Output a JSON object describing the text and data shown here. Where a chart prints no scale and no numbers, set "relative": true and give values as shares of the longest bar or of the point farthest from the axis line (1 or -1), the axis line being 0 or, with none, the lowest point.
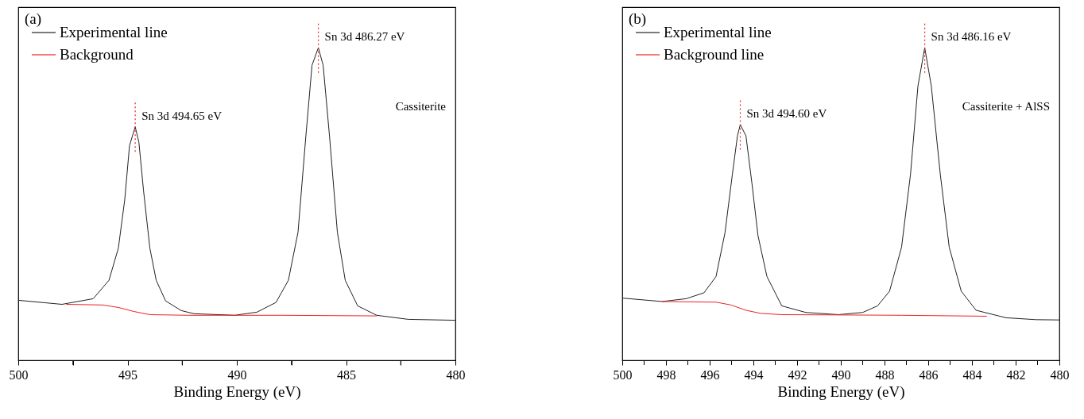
{
  "chart_data": [
    {
      "type": "line",
      "title": "(a)",
      "xlabel": "Binding Energy (eV)",
      "relative": true,
      "legend": "top left",
      "xlim": [
        500,
        480
      ],
      "xticks": [
        500,
        {
          "value": 497.5,
          "label": null
        },
        495,
        {
          "value": 492.5,
          "label": null
        },
        490,
        {
          "value": 487.5,
          "label": null
        },
        485,
        {
          "value": 482.5,
          "label": null
        },
        480
      ],
      "series": [
        {
          "name": "Experimental line",
          "color": "#222222",
          "x": [
            500,
            498.0,
            496.57,
            495.85,
            495.42,
            495.13,
            494.91,
            494.65,
            494.48,
            494.27,
            493.98,
            493.69,
            493.26,
            492.54,
            491.96,
            490.09,
            489.08,
            488.21,
            487.64,
            487.2,
            486.84,
            486.56,
            486.27,
            486.05,
            485.76,
            485.4,
            485.04,
            484.47,
            483.6,
            482.16,
            480
          ],
          "values": [
            0.192,
            0.179,
            0.197,
            0.256,
            0.359,
            0.513,
            0.687,
            0.747,
            0.697,
            0.544,
            0.359,
            0.256,
            0.19,
            0.159,
            0.149,
            0.144,
            0.154,
            0.185,
            0.256,
            0.41,
            0.718,
            0.944,
            1.0,
            0.944,
            0.718,
            0.41,
            0.256,
            0.174,
            0.144,
            0.131,
            0.128
          ]
        },
        {
          "name": "Background",
          "color": "#ee2222",
          "x": [
            497.8,
            496.14,
            495.42,
            494.7,
            493.98,
            492.25,
            487.93,
            483.6
          ],
          "values": [
            0.179,
            0.177,
            0.169,
            0.156,
            0.146,
            0.144,
            0.144,
            0.142
          ]
        }
      ],
      "annotations": [
        {
          "text": "Sn 3d 494.65 eV",
          "x": 494.65,
          "y": 0.747
        },
        {
          "text": "Sn 3d 486.27 eV",
          "x": 486.27,
          "y": 1.0
        },
        "Cassiterite"
      ]
    },
    {
      "type": "line",
      "title": "(b)",
      "xlabel": "Binding Energy (eV)",
      "relative": true,
      "legend": "top left",
      "xlim": [
        500,
        480
      ],
      "xticks": [
        500,
        {
          "value": 499,
          "label": null
        },
        498,
        {
          "value": 497,
          "label": null
        },
        496,
        {
          "value": 495,
          "label": null
        },
        494,
        {
          "value": 493,
          "label": null
        },
        492,
        {
          "value": 491,
          "label": null
        },
        490,
        {
          "value": 489,
          "label": null
        },
        488,
        {
          "value": 487,
          "label": null
        },
        486,
        {
          "value": 485,
          "label": null
        },
        484,
        {
          "value": 483,
          "label": null
        },
        482,
        {
          "value": 481,
          "label": null
        },
        480
      ],
      "series": [
        {
          "name": "Experimental line",
          "color": "#222222",
          "x": [
            500,
            498.18,
            497.08,
            496.26,
            495.71,
            495.3,
            494.96,
            494.73,
            494.6,
            494.34,
            494.07,
            493.79,
            493.38,
            492.7,
            491.6,
            490.1,
            489.0,
            488.32,
            487.77,
            487.22,
            486.81,
            486.47,
            486.16,
            485.86,
            485.45,
            485.04,
            484.49,
            483.81,
            482.44,
            481.07,
            480
          ],
          "values": [
            0.199,
            0.188,
            0.197,
            0.216,
            0.268,
            0.408,
            0.596,
            0.718,
            0.754,
            0.718,
            0.568,
            0.399,
            0.268,
            0.174,
            0.153,
            0.146,
            0.153,
            0.174,
            0.221,
            0.362,
            0.596,
            0.878,
            1.0,
            0.878,
            0.596,
            0.362,
            0.221,
            0.16,
            0.136,
            0.13,
            0.129
          ]
        },
        {
          "name": "Background line",
          "color": "#ee2222",
          "x": [
            498.18,
            495.71,
            495.03,
            494.34,
            493.66,
            492.7,
            487.22,
            483.32
          ],
          "values": [
            0.188,
            0.186,
            0.177,
            0.16,
            0.15,
            0.146,
            0.144,
            0.141
          ]
        }
      ],
      "annotations": [
        {
          "text": "Sn 3d 494.60 eV",
          "x": 494.6,
          "y": 0.754
        },
        {
          "text": "Sn 3d 486.16 eV",
          "x": 486.16,
          "y": 1.0
        },
        "Cassiterite + AlSS"
      ]
    }
  ]
}
